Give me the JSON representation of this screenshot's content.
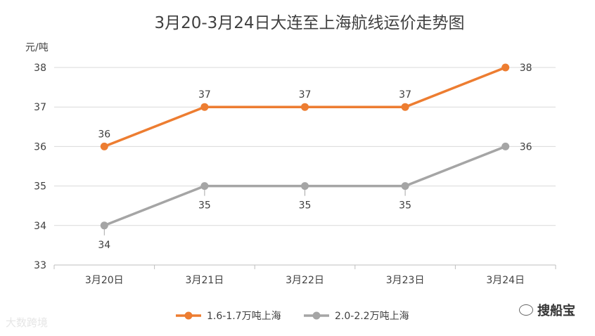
{
  "chart_data": {
    "type": "line",
    "title": "3月20-3月24日大连至上海航线运价走势图",
    "ylabel": "元/吨",
    "xlabel": "",
    "categories": [
      "3月20日",
      "3月21日",
      "3月22日",
      "3月23日",
      "3月24日"
    ],
    "ylim": [
      33,
      38
    ],
    "yticks": [
      33,
      34,
      35,
      36,
      37,
      38
    ],
    "grid": true,
    "legend_position": "bottom",
    "series": [
      {
        "name": "1.6-1.7万吨上海",
        "color": "#ED7D31",
        "values": [
          36,
          37,
          37,
          37,
          38
        ],
        "label_position": "above"
      },
      {
        "name": "2.0-2.2万吨上海",
        "color": "#A5A5A5",
        "values": [
          34,
          35,
          35,
          35,
          36
        ],
        "label_position": "below"
      }
    ]
  },
  "watermarks": {
    "left": "大数跨境",
    "right": "搜船宝"
  }
}
